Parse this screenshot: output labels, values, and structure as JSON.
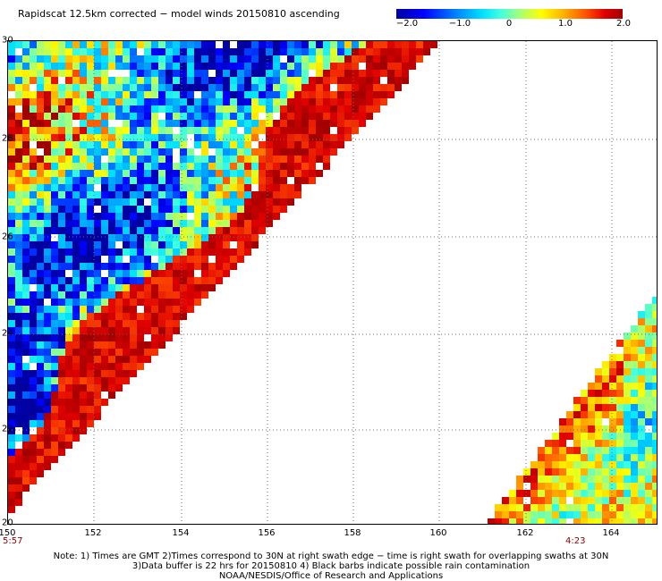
{
  "title": "Rapidscat 12.5km corrected − model winds 20150810 ascending",
  "colorbar": {
    "labels": [
      "−2.0",
      "−1.0",
      "0",
      "1.0",
      "2.0"
    ],
    "values": [
      -2.0,
      -1.0,
      0,
      1.0,
      2.0
    ],
    "min": -2.0,
    "max": 2.0
  },
  "map": {
    "lon_range": [
      150,
      165
    ],
    "lat_range": [
      20,
      30
    ],
    "x_labels": [
      "150",
      "152",
      "154",
      "156",
      "158",
      "160",
      "162",
      "164"
    ],
    "y_labels": [
      "20",
      "22",
      "24",
      "26",
      "28",
      "30"
    ],
    "start_time": "5:57",
    "end_time": "4:23",
    "swaths": [
      {
        "name": "left",
        "field": "mixed negative and positive anomalies, strongly positive along eastern edge"
      },
      {
        "name": "right",
        "field": "mostly positive anomalies"
      }
    ]
  },
  "notes": {
    "line1": "Note: 1) Times are GMT 2)Times correspond to 30N at right swath edge − time is right swath for overlapping swaths at 30N",
    "line2": "3)Data buffer is 22 hrs for 20150810 4) Black barbs indicate possible rain contamination",
    "line3": "NOAA/NESDIS/Office of Research and Applications"
  },
  "colors": {
    "dark_red": "#a00000",
    "time_label": "#8b0000",
    "grid": "#6b6b6b"
  }
}
